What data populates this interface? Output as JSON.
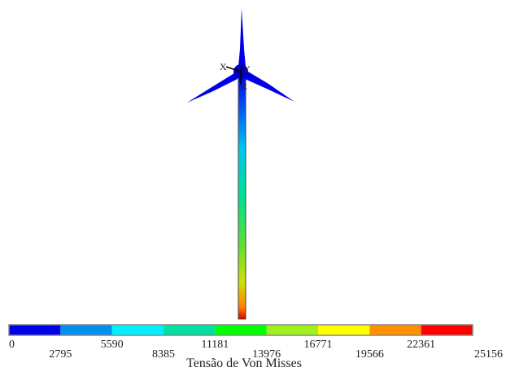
{
  "axes": {
    "labels": [
      "X",
      "Y",
      "Z"
    ]
  },
  "legend": {
    "title": "Tensão de Von Misses",
    "ticks": [
      "0",
      "2795",
      "5590",
      "8385",
      "11181",
      "13976",
      "16771",
      "19566",
      "22361",
      "25156"
    ],
    "colors": [
      "#0000e8",
      "#0090f0",
      "#00f0ff",
      "#00e0a0",
      "#00ff00",
      "#a0f020",
      "#ffff00",
      "#ff9000",
      "#ff0000"
    ]
  }
}
